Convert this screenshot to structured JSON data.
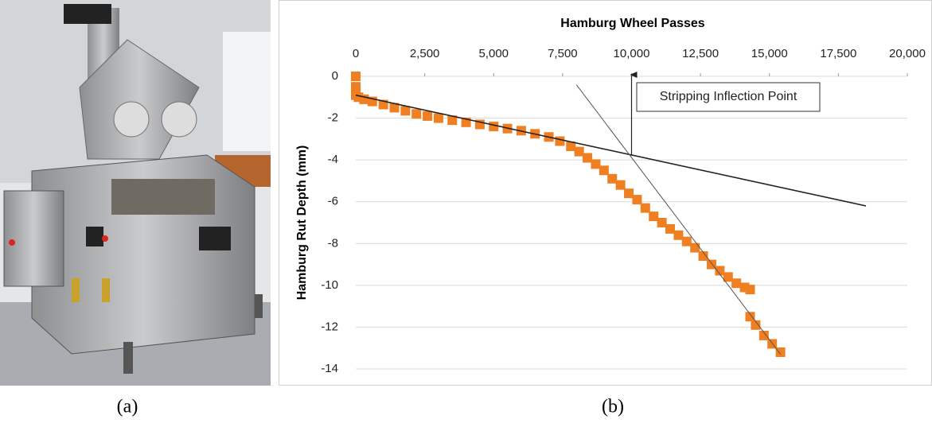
{
  "captions": [
    "(a)",
    "(b)"
  ],
  "chart_data": {
    "type": "scatter",
    "title": "Hamburg Wheel Passes",
    "y_label": "Hamburg Rut Depth (mm)",
    "x": [
      0,
      0,
      0,
      100,
      300,
      600,
      1000,
      1400,
      1800,
      2200,
      2600,
      3000,
      3500,
      4000,
      4500,
      5000,
      5500,
      6000,
      6500,
      7000,
      7400,
      7800,
      8100,
      8400,
      8700,
      9000,
      9300,
      9600,
      9900,
      10200,
      10500,
      10800,
      11100,
      11400,
      11700,
      12000,
      12300,
      12600,
      12900,
      13200,
      13500,
      13800,
      14100,
      14300,
      14300,
      14500,
      14800,
      15100,
      15400
    ],
    "values": [
      0,
      -0.5,
      -0.9,
      -1.0,
      -1.1,
      -1.2,
      -1.35,
      -1.5,
      -1.65,
      -1.8,
      -1.9,
      -2.0,
      -2.1,
      -2.2,
      -2.3,
      -2.4,
      -2.5,
      -2.6,
      -2.75,
      -2.9,
      -3.1,
      -3.35,
      -3.6,
      -3.9,
      -4.2,
      -4.5,
      -4.9,
      -5.2,
      -5.6,
      -5.9,
      -6.3,
      -6.7,
      -7.0,
      -7.3,
      -7.6,
      -7.9,
      -8.2,
      -8.6,
      -9.0,
      -9.3,
      -9.6,
      -9.9,
      -10.1,
      -10.2,
      -11.5,
      -11.9,
      -12.4,
      -12.8,
      -13.2
    ],
    "color": "#f07f22",
    "marker": "square",
    "trendlines": [
      {
        "x": [
          0,
          18500
        ],
        "y": [
          -0.9,
          -6.2
        ],
        "color": "#222222"
      },
      {
        "x": [
          8000,
          15400
        ],
        "y": [
          -0.4,
          -13.3
        ],
        "color": "#555555"
      }
    ],
    "annotation": {
      "text": "Stripping Inflection Point",
      "x": 10000,
      "y": -3.8
    },
    "xlim": [
      0,
      20000
    ],
    "xticks": [
      0,
      {
        "value": 2500,
        "label": "2,500"
      },
      {
        "value": 5000,
        "label": "5,000"
      },
      {
        "value": 7500,
        "label": "7,500"
      },
      {
        "value": 10000,
        "label": "10,000"
      },
      {
        "value": 12500,
        "label": "12,500"
      },
      {
        "value": 15000,
        "label": "15,000"
      },
      {
        "value": 17500,
        "label": "17,500"
      },
      {
        "value": 20000,
        "label": "20,000"
      }
    ],
    "ylim": [
      -14,
      0
    ],
    "yticks": [
      0,
      -2,
      -4,
      -6,
      -8,
      -10,
      -12,
      -14
    ],
    "grid": true
  }
}
